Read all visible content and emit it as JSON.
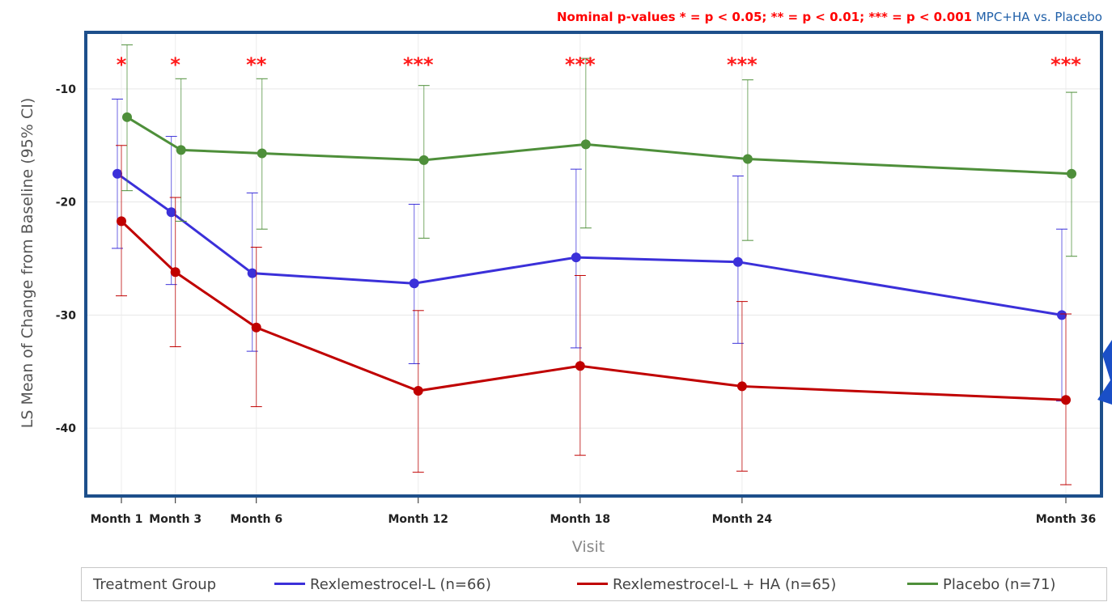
{
  "annotation": {
    "pvalues": "Nominal p-values * = p < 0.05; ** = p < 0.01; *** = p < 0.001",
    "comparison": "MPC+HA vs. Placebo"
  },
  "legend": {
    "title": "Treatment Group",
    "items": [
      {
        "label": "Rexlemestrocel-L (n=66)",
        "color": "#3b30d9"
      },
      {
        "label": "Rexlemestrocel-L + HA (n=65)",
        "color": "#c00000"
      },
      {
        "label": "Placebo (n=71)",
        "color": "#4e8f3a"
      }
    ]
  },
  "chart_data": {
    "type": "line",
    "xlabel": "Visit",
    "ylabel": "LS Mean of Change from Baseline (95% CI)",
    "x_months": [
      1,
      3,
      6,
      12,
      18,
      24,
      36
    ],
    "categories": [
      "Month 1",
      "Month 3",
      "Month 6",
      "Month 12",
      "Month 18",
      "Month 24",
      "Month 36"
    ],
    "ylim": [
      -46,
      -5
    ],
    "yticks": [
      -10,
      -20,
      -30,
      -40
    ],
    "grid": true,
    "significance": [
      "*",
      "*",
      "**",
      "***",
      "***",
      "***",
      "***"
    ],
    "series": [
      {
        "name": "Rexlemestrocel-L (n=66)",
        "color": "#3b30d9",
        "values": [
          -17.5,
          -20.9,
          -26.3,
          -27.2,
          -24.9,
          -25.3,
          -30.0
        ],
        "lower": [
          -24.1,
          -27.3,
          -33.2,
          -34.3,
          -32.9,
          -32.5,
          -37.6
        ],
        "upper": [
          -10.9,
          -14.2,
          -19.2,
          -20.2,
          -17.1,
          -17.7,
          -22.4
        ]
      },
      {
        "name": "Rexlemestrocel-L + HA (n=65)",
        "color": "#c00000",
        "values": [
          -21.7,
          -26.2,
          -31.1,
          -36.7,
          -34.5,
          -36.3,
          -37.5
        ],
        "lower": [
          -28.3,
          -32.8,
          -38.1,
          -43.9,
          -42.4,
          -43.8,
          -45.0
        ],
        "upper": [
          -15.0,
          -19.6,
          -24.0,
          -29.6,
          -26.5,
          -28.8,
          -29.9
        ]
      },
      {
        "name": "Placebo (n=71)",
        "color": "#4e8f3a",
        "values": [
          -12.5,
          -15.4,
          -15.7,
          -16.3,
          -14.9,
          -16.2,
          -17.5
        ],
        "lower": [
          -19.0,
          -21.7,
          -22.4,
          -23.2,
          -22.3,
          -23.4,
          -24.8
        ],
        "upper": [
          -6.1,
          -9.1,
          -9.1,
          -9.7,
          -7.3,
          -9.2,
          -10.3
        ]
      }
    ]
  }
}
